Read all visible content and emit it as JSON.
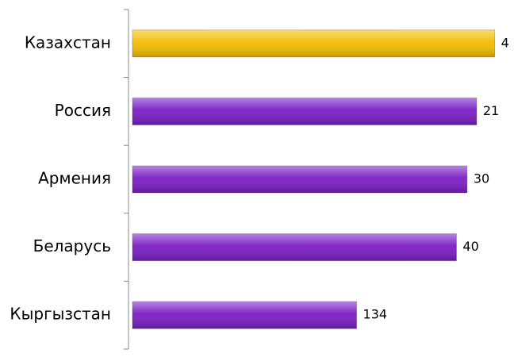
{
  "chart_data": {
    "type": "barh",
    "categories": [
      "Казахстан",
      "Россия",
      "Армения",
      "Беларусь",
      "Кыргызстан"
    ],
    "values": [
      4,
      21,
      30,
      40,
      134
    ],
    "colors": [
      "#f2bd00",
      "#7a1ec4",
      "#7a1ec4",
      "#7a1ec4",
      "#7a1ec4"
    ],
    "xlim": [
      345,
      0
    ]
  }
}
